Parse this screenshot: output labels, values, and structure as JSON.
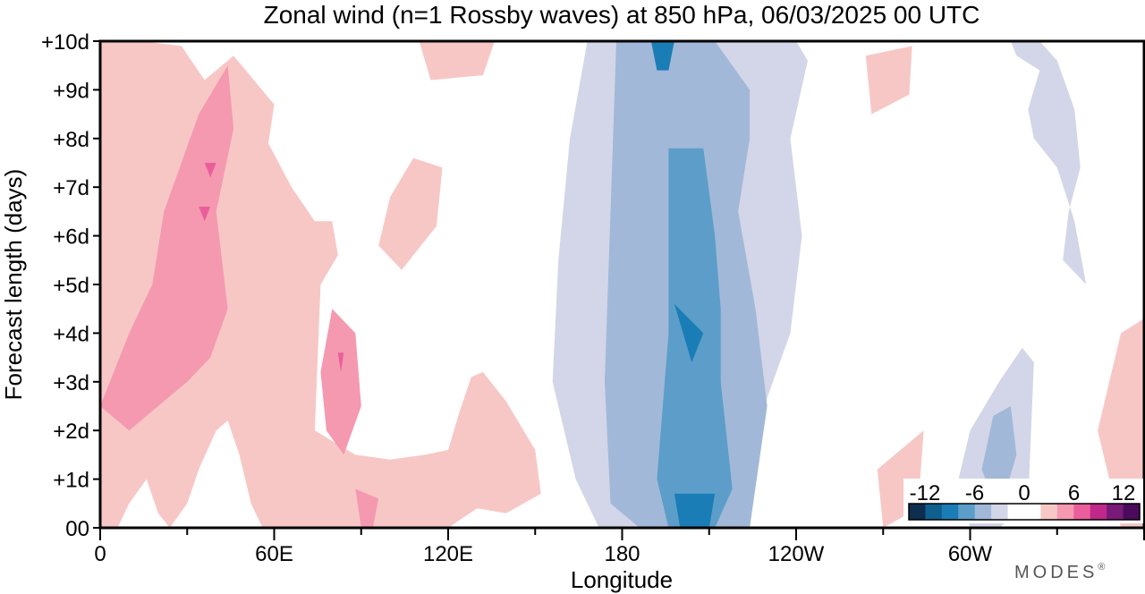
{
  "chart_data": {
    "type": "heatmap",
    "title": "Zonal wind (n=1 Rossby waves) at 850 hPa,  06/03/2025  00 UTC",
    "xlabel": "Longitude",
    "ylabel": "Forecast length (days)",
    "x_ticks": [
      "0",
      "60E",
      "120E",
      "180",
      "120W",
      "60W"
    ],
    "x_tick_values": [
      0,
      60,
      120,
      180,
      240,
      300
    ],
    "x_range": [
      0,
      360
    ],
    "y_ticks": [
      "00",
      "+1d",
      "+2d",
      "+3d",
      "+4d",
      "+5d",
      "+6d",
      "+7d",
      "+8d",
      "+9d",
      "+10d"
    ],
    "y_range": [
      0,
      10
    ],
    "grid": false,
    "colorbar": {
      "labels": [
        "-12",
        "-6",
        "0",
        "6",
        "12"
      ],
      "colors": [
        "#0d2e4e",
        "#0f5f8f",
        "#1a7db6",
        "#5c9ec9",
        "#a2b8d8",
        "#d3d6e8",
        "#ffffff",
        "#ffffff",
        "#f7c7c6",
        "#f499b0",
        "#ea5f9b",
        "#c0288a",
        "#7a1a78",
        "#4a0b5c"
      ]
    },
    "contours": [
      {
        "level": "0 to 3",
        "color": "#f7c7c6",
        "regions": [
          {
            "name": "indian-ocean-positive",
            "lon": [
              0,
              14,
              28,
              36,
              46,
              60,
              58,
              66,
              74,
              80,
              82,
              76,
              74,
              88,
              100,
              112,
              120,
              124,
              128,
              132,
              140,
              150,
              152,
              140,
              130,
              120,
              110,
              100,
              90,
              80,
              70,
              62,
              56,
              52,
              48,
              44,
              40,
              34,
              30,
              24,
              20,
              16,
              10,
              6,
              2,
              0
            ],
            "day": [
              10,
              10,
              9.9,
              9.2,
              9.7,
              8.7,
              7.9,
              7.0,
              6.3,
              6.3,
              5.6,
              5.0,
              2.0,
              1.5,
              1.4,
              1.5,
              1.6,
              2.4,
              3.1,
              3.2,
              2.6,
              1.6,
              0.7,
              0.3,
              0.4,
              0.0,
              0.0,
              0.0,
              0.0,
              0.0,
              0.0,
              0.0,
              0.0,
              0.5,
              1.5,
              2.2,
              2.0,
              1.2,
              0.5,
              0.0,
              0.3,
              1.0,
              0.5,
              0.0,
              0.0,
              0.0
            ]
          },
          {
            "name": "central-pacific-positive",
            "lon": [
              108,
              118,
              116,
              104,
              96,
              100,
              108
            ],
            "day": [
              7.6,
              7.4,
              6.2,
              5.3,
              5.8,
              6.8,
              7.6
            ]
          },
          {
            "name": "north-pacific-blob",
            "lon": [
              110,
              136,
              132,
              114,
              110
            ],
            "day": [
              10.0,
              10.0,
              9.3,
              9.2,
              10.0
            ]
          },
          {
            "name": "east-atlantic-positive-top",
            "lon": [
              264,
              280,
              279,
              266,
              264
            ],
            "day": [
              9.7,
              9.9,
              8.9,
              8.5,
              9.7
            ]
          },
          {
            "name": "east-atlantic-positive-lower",
            "lon": [
              268,
              284,
              282,
              270,
              268
            ],
            "day": [
              1.2,
              2.0,
              0.4,
              0.0,
              1.2
            ]
          },
          {
            "name": "east-edge-positive",
            "lon": [
              352,
              360,
              360,
              352,
              344,
              352
            ],
            "day": [
              4.0,
              4.3,
              0.0,
              0.0,
              2.0,
              4.0
            ]
          }
        ]
      },
      {
        "level": "3 to 6",
        "color": "#f499b0",
        "regions": [
          {
            "name": "indian-ocean-core",
            "lon": [
              10,
              18,
              22,
              28,
              34,
              44,
              46,
              40,
              44,
              38,
              30,
              20,
              10,
              0
            ],
            "day": [
              4.0,
              5.0,
              6.5,
              7.5,
              8.5,
              9.5,
              8.2,
              6.5,
              4.5,
              3.5,
              3.0,
              2.5,
              2.0,
              2.5
            ]
          },
          {
            "name": "bay-of-bengal-core",
            "lon": [
              80,
              88,
              90,
              84,
              78,
              76,
              80
            ],
            "day": [
              4.5,
              4.0,
              2.5,
              1.5,
              2.0,
              3.2,
              4.5
            ]
          },
          {
            "name": "southern-core",
            "lon": [
              88,
              96,
              94,
              90,
              88
            ],
            "day": [
              0.8,
              0.6,
              0.0,
              0.0,
              0.8
            ]
          }
        ]
      },
      {
        "level": "6 to 9",
        "color": "#ea5f9b",
        "regions": [
          {
            "name": "indian-ocean-peak-a",
            "lon": [
              36,
              40,
              38,
              36
            ],
            "day": [
              7.5,
              7.5,
              7.2,
              7.5
            ]
          },
          {
            "name": "indian-ocean-peak-b",
            "lon": [
              34,
              38,
              36,
              34
            ],
            "day": [
              6.6,
              6.6,
              6.3,
              6.6
            ]
          },
          {
            "name": "bay-of-bengal-peak",
            "lon": [
              82,
              84,
              83,
              82
            ],
            "day": [
              3.6,
              3.6,
              3.2,
              3.6
            ]
          }
        ]
      },
      {
        "level": "-3 to 0",
        "color": "#d3d6e8",
        "regions": [
          {
            "name": "dateline-negative",
            "lon": [
              168,
              176,
              184,
              196,
              210,
              226,
              240,
              244,
              238,
              242,
              238,
              226,
              218,
              210,
              200,
              186,
              172,
              164,
              156,
              158,
              162,
              168
            ],
            "day": [
              10.0,
              10.0,
              10.0,
              10.0,
              10.0,
              10.0,
              10.0,
              9.6,
              8.0,
              6.0,
              4.0,
              2.0,
              0.0,
              0.0,
              0.0,
              0.0,
              0.0,
              1.0,
              3.0,
              5.5,
              8.0,
              10.0
            ]
          },
          {
            "name": "atlantic-negative",
            "lon": [
              314,
              324,
              330,
              336,
              338,
              334,
              332,
              340,
              336,
              330,
              322,
              320,
              324,
              316,
              314
            ],
            "day": [
              10.0,
              10.0,
              9.6,
              8.6,
              7.4,
              6.5,
              5.5,
              5.0,
              6.3,
              7.4,
              8.0,
              8.6,
              9.4,
              9.7,
              10.0
            ]
          },
          {
            "name": "south-atlantic-negative",
            "lon": [
              300,
              310,
              318,
              322,
              320,
              310,
              300,
              296,
              300
            ],
            "day": [
              2.0,
              3.0,
              3.7,
              3.4,
              0.5,
              0.0,
              0.0,
              1.0,
              2.0
            ]
          }
        ]
      },
      {
        "level": "-6 to -3",
        "color": "#a2b8d8",
        "regions": [
          {
            "name": "dateline-core-outer",
            "lon": [
              178,
              188,
              200,
              212,
              224,
              224,
              220,
              226,
              230,
              224,
              210,
              196,
              186,
              176,
              174,
              178
            ],
            "day": [
              10.0,
              10.0,
              10.0,
              10.0,
              9.0,
              8.0,
              6.5,
              4.5,
              2.5,
              0.0,
              0.0,
              0.0,
              0.0,
              0.5,
              3.0,
              10.0
            ]
          },
          {
            "name": "south-atlantic-core",
            "lon": [
              308,
              314,
              316,
              310,
              304,
              308
            ],
            "day": [
              2.3,
              2.5,
              1.5,
              0.3,
              1.2,
              2.3
            ]
          }
        ]
      },
      {
        "level": "-9 to -6",
        "color": "#5c9ec9",
        "regions": [
          {
            "name": "dateline-core-mid",
            "lon": [
              196,
              208,
              212,
              214,
              214,
              218,
              212,
              196,
              192,
              196,
              196
            ],
            "day": [
              7.8,
              7.8,
              6.0,
              4.5,
              3.0,
              0.8,
              0.0,
              0.0,
              1.0,
              4.0,
              7.8
            ]
          }
        ]
      },
      {
        "level": "-12 to -9",
        "color": "#1a7db6",
        "regions": [
          {
            "name": "dateline-peak-upper",
            "lon": [
              198,
              208,
              204,
              198
            ],
            "day": [
              4.6,
              4.0,
              3.4,
              4.6
            ]
          },
          {
            "name": "dateline-peak-lower",
            "lon": [
              198,
              212,
              210,
              200,
              198
            ],
            "day": [
              0.7,
              0.7,
              0.0,
              0.0,
              0.7
            ]
          },
          {
            "name": "dateline-peak-top",
            "lon": [
              190,
              198,
              196,
              192,
              190
            ],
            "day": [
              10.0,
              10.0,
              9.4,
              9.4,
              10.0
            ]
          }
        ]
      }
    ]
  },
  "brand": "MODES",
  "brand_mark": "®"
}
